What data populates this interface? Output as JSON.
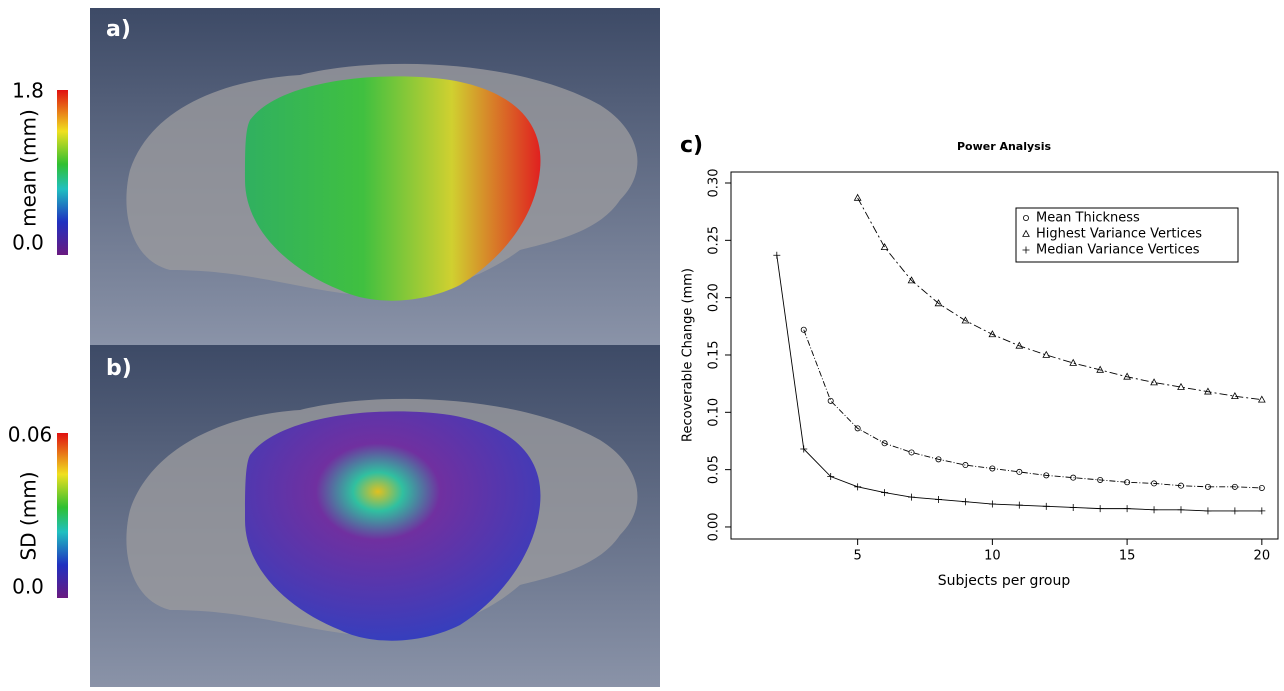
{
  "panels": [
    {
      "label": "a)",
      "colorbar": {
        "label": "mean (mm)",
        "top": "1.8",
        "bottom": "0.0"
      }
    },
    {
      "label": "b)",
      "colorbar": {
        "label": "SD (mm)",
        "top": "0.06",
        "bottom": "0.0"
      }
    }
  ],
  "chart_data": {
    "type": "line",
    "label": "c)",
    "title": "Power Analysis",
    "x_label": "Subjects per group",
    "y_label": "Recoverable Change (mm)",
    "x": [
      2,
      3,
      4,
      5,
      6,
      7,
      8,
      9,
      10,
      11,
      12,
      13,
      14,
      15,
      16,
      17,
      18,
      19,
      20
    ],
    "series": [
      {
        "name": "Mean Thickness",
        "color": "#000000",
        "marker": "circle",
        "values": [
          null,
          0.172,
          0.11,
          0.086,
          0.073,
          0.065,
          0.059,
          0.054,
          0.051,
          0.048,
          0.045,
          0.043,
          0.041,
          0.039,
          0.038,
          0.036,
          0.035,
          0.035,
          0.034
        ]
      },
      {
        "name": "Highest Variance Vertices",
        "color": "#000000",
        "marker": "triangle",
        "values": [
          null,
          null,
          null,
          0.287,
          0.244,
          0.215,
          0.195,
          0.18,
          0.168,
          0.158,
          0.15,
          0.143,
          0.137,
          0.131,
          0.126,
          0.122,
          0.118,
          0.114,
          0.111
        ]
      },
      {
        "name": "Median Variance Vertices",
        "color": "#000000",
        "marker": "plus",
        "values": [
          0.237,
          0.068,
          0.044,
          0.035,
          0.03,
          0.026,
          0.024,
          0.022,
          0.02,
          0.019,
          0.018,
          0.017,
          0.016,
          0.016,
          0.015,
          0.015,
          0.014,
          0.014,
          0.014
        ]
      }
    ],
    "xlim": [
      0.3,
      20.6
    ],
    "xticks": [
      5,
      10,
      15,
      20
    ],
    "ylim": [
      -0.0105,
      0.3096
    ],
    "yticks": [
      {
        "value": 0,
        "label": "0.00"
      },
      {
        "value": 0.05,
        "label": "0.05"
      },
      {
        "value": 0.1,
        "label": "0.10"
      },
      {
        "value": 0.15,
        "label": "0.15"
      },
      {
        "value": 0.2,
        "label": "0.20"
      },
      {
        "value": 0.25,
        "label": "0.25"
      },
      {
        "value": 0.3,
        "label": "0.30"
      }
    ],
    "legend": "top-right"
  }
}
